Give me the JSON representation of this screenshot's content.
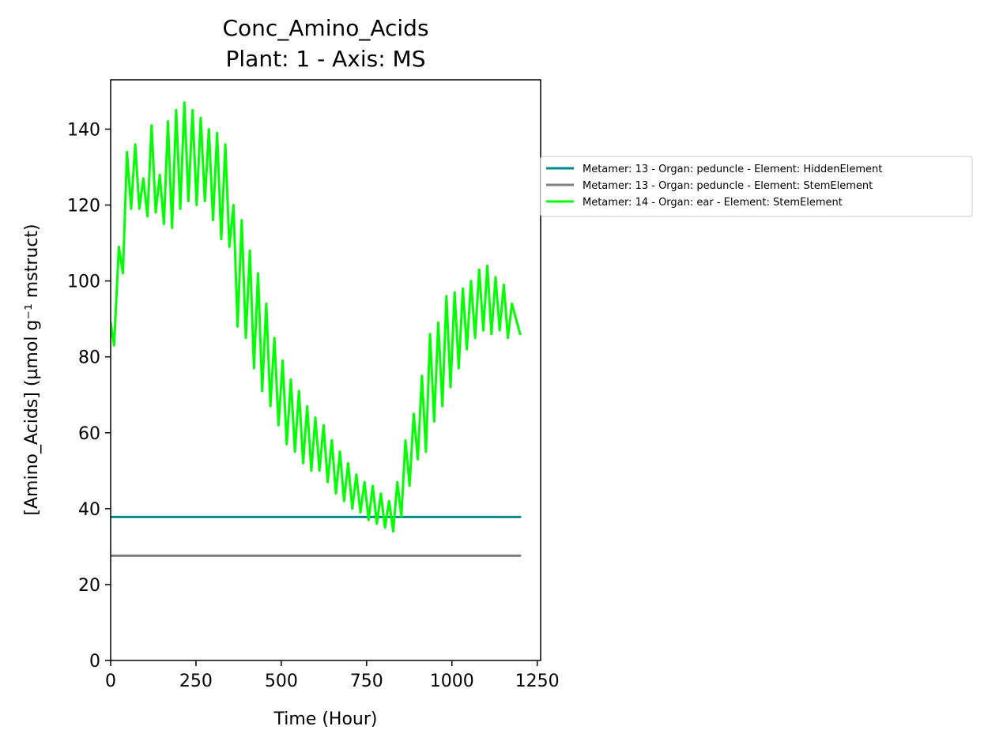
{
  "chart_data": {
    "type": "line",
    "title": "Conc_Amino_Acids",
    "subtitle": "Plant: 1 - Axis: MS",
    "xlabel": "Time (Hour)",
    "ylabel": "[Amino_Acids] (µmol g⁻¹ mstruct)",
    "xlim": [
      0,
      1260
    ],
    "ylim": [
      0,
      153
    ],
    "xticks": [
      0,
      250,
      500,
      750,
      1000,
      1250
    ],
    "yticks": [
      0,
      20,
      40,
      60,
      80,
      100,
      120,
      140
    ],
    "grid": false,
    "legend_placement": "outside-right",
    "series": [
      {
        "name": "Metamer: 13 - Organ: peduncle - Element: HiddenElement",
        "color": "#008b8b",
        "x": [
          0,
          1200
        ],
        "y": [
          37.8,
          37.8
        ]
      },
      {
        "name": "Metamer: 13 - Organ: peduncle - Element: StemElement",
        "color": "#808080",
        "x": [
          0,
          1200
        ],
        "y": [
          27.6,
          27.6
        ]
      },
      {
        "name": "Metamer: 14 - Organ: ear - Element: StemElement",
        "color": "#00ff00",
        "x": [
          0,
          10,
          24,
          36,
          48,
          60,
          72,
          84,
          96,
          108,
          120,
          132,
          144,
          156,
          168,
          180,
          192,
          204,
          216,
          228,
          240,
          252,
          264,
          276,
          288,
          300,
          312,
          324,
          336,
          348,
          360,
          372,
          384,
          396,
          408,
          420,
          432,
          444,
          456,
          468,
          480,
          492,
          504,
          516,
          528,
          540,
          552,
          564,
          576,
          588,
          600,
          612,
          624,
          636,
          648,
          660,
          672,
          684,
          696,
          708,
          720,
          732,
          744,
          756,
          768,
          780,
          792,
          804,
          816,
          828,
          840,
          852,
          864,
          876,
          888,
          900,
          912,
          924,
          936,
          948,
          960,
          972,
          984,
          996,
          1008,
          1020,
          1032,
          1044,
          1056,
          1068,
          1080,
          1092,
          1104,
          1116,
          1128,
          1140,
          1152,
          1164,
          1176,
          1188,
          1200
        ],
        "y": [
          89,
          83,
          109,
          102,
          134,
          119,
          136,
          119,
          127,
          117,
          141,
          118,
          128,
          115,
          142,
          114,
          145,
          119,
          147,
          121,
          145,
          120,
          143,
          121,
          140,
          116,
          139,
          111,
          136,
          109,
          120,
          88,
          116,
          85,
          108,
          77,
          102,
          71,
          94,
          67,
          85,
          62,
          79,
          57,
          74,
          55,
          71,
          52,
          67,
          50,
          64,
          50,
          62,
          47,
          58,
          44,
          55,
          42,
          52,
          40,
          49,
          39,
          47,
          37,
          46,
          36,
          44,
          35,
          42,
          34,
          47,
          38,
          58,
          46,
          65,
          53,
          75,
          55,
          86,
          63,
          89,
          67,
          96,
          72,
          97,
          77,
          98,
          82,
          100,
          85,
          103,
          87,
          104,
          86,
          101,
          87,
          99,
          85,
          94,
          90,
          86
        ]
      }
    ]
  }
}
